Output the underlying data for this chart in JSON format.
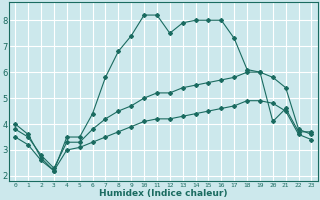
{
  "xlabel": "Humidex (Indice chaleur)",
  "background_color": "#cce8ec",
  "grid_color": "#ffffff",
  "line_color": "#1a6b60",
  "x_ticks": [
    0,
    1,
    2,
    3,
    4,
    5,
    6,
    7,
    8,
    9,
    10,
    11,
    12,
    13,
    14,
    15,
    16,
    17,
    18,
    19,
    20,
    21,
    22,
    23
  ],
  "y_ticks": [
    2,
    3,
    4,
    5,
    6,
    7,
    8
  ],
  "ylim": [
    1.8,
    8.7
  ],
  "xlim": [
    -0.5,
    23.5
  ],
  "series": [
    {
      "x": [
        0,
        1,
        2,
        3,
        4,
        5,
        6,
        7,
        8,
        9,
        10,
        11,
        12,
        13,
        14,
        15,
        16,
        17,
        18,
        19,
        20,
        21,
        22,
        23
      ],
      "y": [
        4.0,
        3.6,
        2.7,
        2.2,
        3.5,
        3.5,
        4.4,
        5.8,
        6.8,
        7.4,
        8.2,
        8.2,
        7.5,
        7.9,
        8.0,
        8.0,
        8.0,
        7.3,
        6.1,
        6.0,
        4.1,
        4.6,
        3.7,
        3.7
      ]
    },
    {
      "x": [
        0,
        1,
        2,
        3,
        4,
        5,
        6,
        7,
        8,
        9,
        10,
        11,
        12,
        13,
        14,
        15,
        16,
        17,
        18,
        19,
        20,
        21,
        22,
        23
      ],
      "y": [
        3.8,
        3.5,
        2.8,
        2.3,
        3.3,
        3.3,
        3.8,
        4.2,
        4.5,
        4.7,
        5.0,
        5.2,
        5.2,
        5.4,
        5.5,
        5.6,
        5.7,
        5.8,
        6.0,
        6.0,
        5.8,
        5.4,
        3.8,
        3.6
      ]
    },
    {
      "x": [
        0,
        1,
        2,
        3,
        4,
        5,
        6,
        7,
        8,
        9,
        10,
        11,
        12,
        13,
        14,
        15,
        16,
        17,
        18,
        19,
        20,
        21,
        22,
        23
      ],
      "y": [
        3.5,
        3.2,
        2.6,
        2.2,
        3.0,
        3.1,
        3.3,
        3.5,
        3.7,
        3.9,
        4.1,
        4.2,
        4.2,
        4.3,
        4.4,
        4.5,
        4.6,
        4.7,
        4.9,
        4.9,
        4.8,
        4.5,
        3.6,
        3.4
      ]
    }
  ]
}
